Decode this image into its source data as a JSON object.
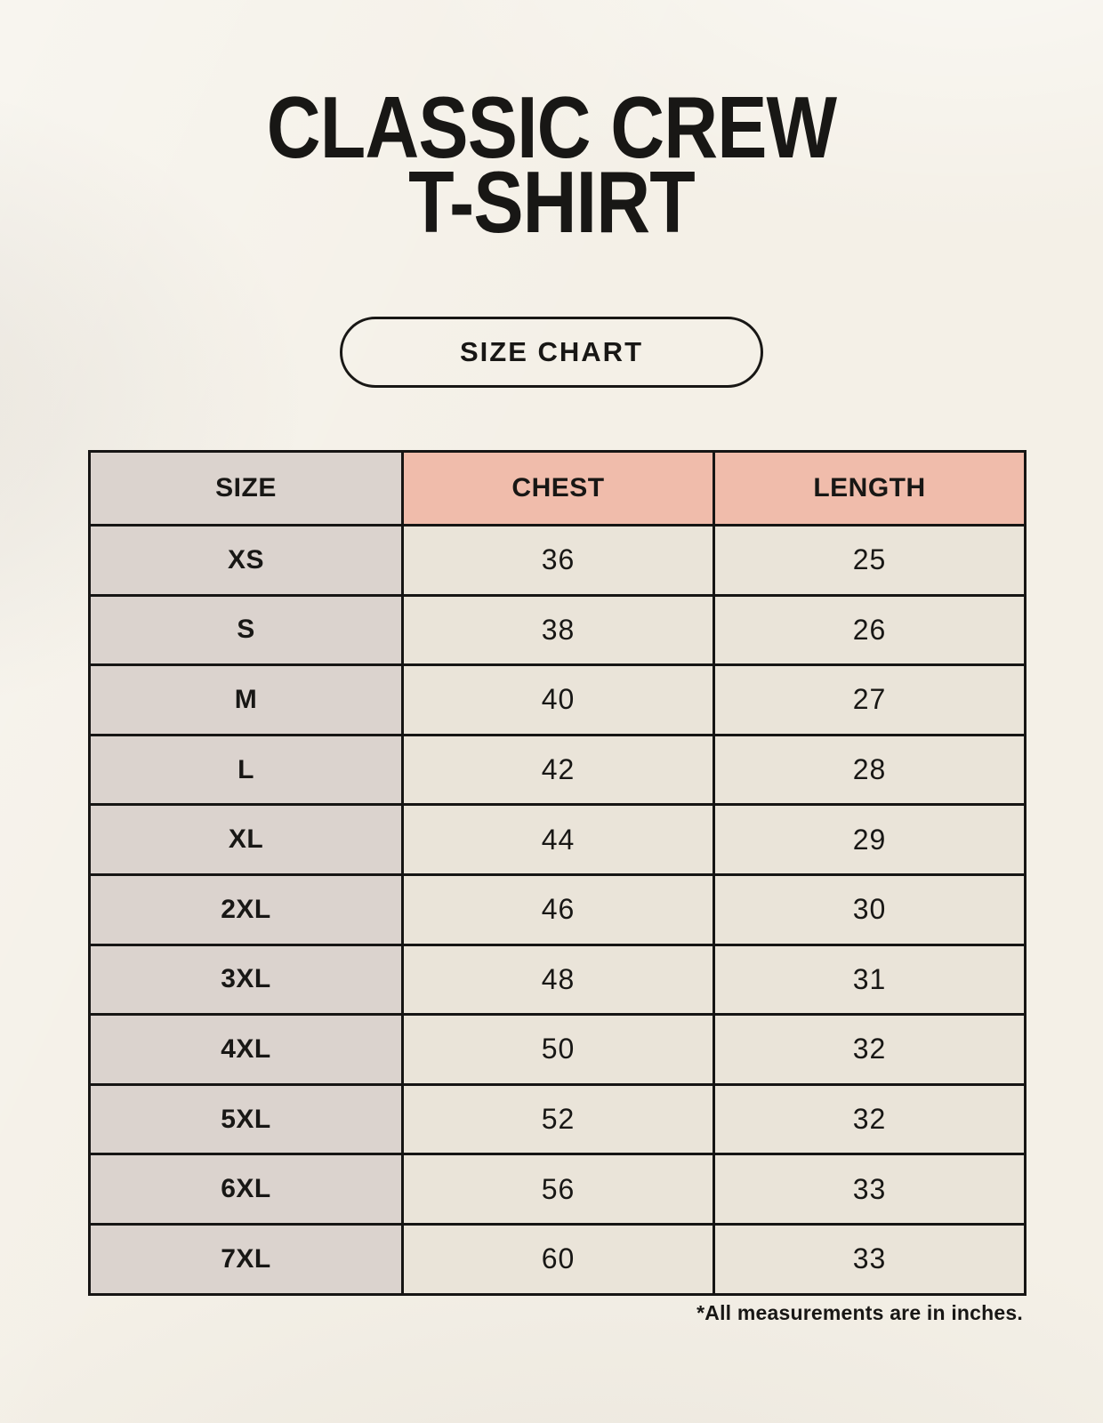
{
  "page": {
    "title_line1": "CLASSIC CREW",
    "title_line2": "T-SHIRT",
    "size_chart_button_label": "SIZE CHART",
    "footnote": "*All measurements are in inches."
  },
  "colors": {
    "page_background": "#f4f0e7",
    "header_accent_salmon": "#f0bcab",
    "size_column_gray": "#dbd3ce",
    "value_cell_cream": "#eae4d9",
    "border_black": "#161514",
    "text_black": "#181715"
  },
  "chart_data": {
    "type": "table",
    "title": "CLASSIC CREW T-SHIRT",
    "subtitle": "SIZE CHART",
    "units": "inches",
    "columns": [
      "SIZE",
      "CHEST",
      "LENGTH"
    ],
    "rows": [
      [
        "XS",
        "36",
        "25"
      ],
      [
        "S",
        "38",
        "26"
      ],
      [
        "M",
        "40",
        "27"
      ],
      [
        "L",
        "42",
        "28"
      ],
      [
        "XL",
        "44",
        "29"
      ],
      [
        "2XL",
        "46",
        "30"
      ],
      [
        "3XL",
        "48",
        "31"
      ],
      [
        "4XL",
        "50",
        "32"
      ],
      [
        "5XL",
        "52",
        "32"
      ],
      [
        "6XL",
        "56",
        "33"
      ],
      [
        "7XL",
        "60",
        "33"
      ]
    ]
  }
}
